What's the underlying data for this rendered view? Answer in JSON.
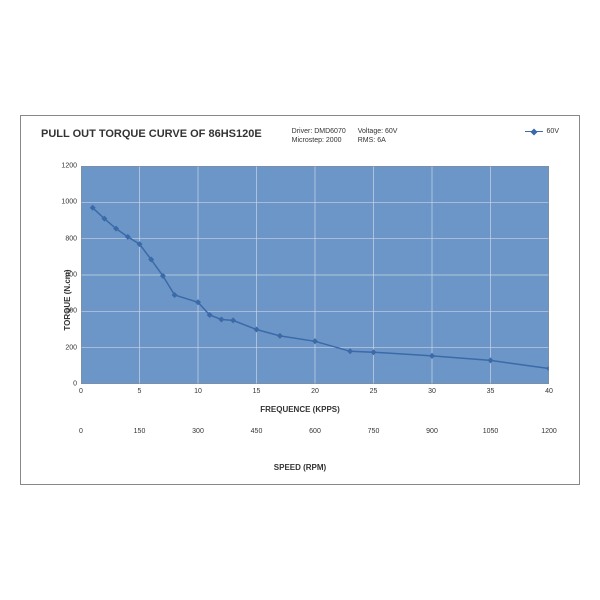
{
  "title": "PULL OUT TORQUE CURVE OF 86HS120E",
  "meta": {
    "driver_label": "Driver: DMD6070",
    "voltage_label": "Voltage: 60V",
    "microstep_label": "Microstep: 2000",
    "rms_label": "RMS: 6A"
  },
  "legend_label": "60V",
  "chart": {
    "type": "line-area",
    "plot_bg": "#6c96c8",
    "line_color": "#3a6aa8",
    "marker_color": "#3a6aa8",
    "grid_color": "#c8d4e4",
    "border_color": "#888888",
    "x": [
      1,
      2,
      3,
      4,
      5,
      6,
      7,
      8,
      10,
      11,
      12,
      13,
      15,
      17,
      20,
      23,
      25,
      30,
      35,
      40
    ],
    "y": [
      970,
      910,
      855,
      810,
      770,
      685,
      595,
      490,
      450,
      380,
      355,
      350,
      300,
      265,
      235,
      180,
      175,
      155,
      130,
      85
    ],
    "xlim": [
      0,
      40
    ],
    "ylim": [
      0,
      1200
    ],
    "xtick_step": 5,
    "ytick_step": 200,
    "ylabel": "TORQUE (N.cm)",
    "xlabel1": "FREQUENCE (KPPS)",
    "xlabel2": "SPEED (RPM)",
    "speed_ticks": [
      0,
      150,
      300,
      450,
      600,
      750,
      900,
      1050,
      1200
    ],
    "marker_size": 3,
    "line_width": 1.5
  }
}
